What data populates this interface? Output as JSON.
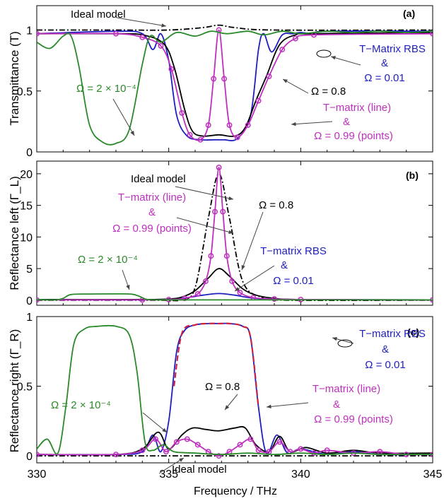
{
  "figure": {
    "xlabel": "Frequency / THz",
    "x_ticks": [
      "330",
      "335",
      "340",
      "345"
    ]
  },
  "chart_data": [
    {
      "type": "line",
      "panel_label": "(a)",
      "ylabel": "Transmittance (T)",
      "xlim": [
        330,
        345
      ],
      "ylim": [
        0,
        1.2
      ],
      "y_ticks": [
        "0",
        "0.5",
        "1"
      ],
      "grid": false,
      "series": [
        {
          "name": "Ideal model",
          "color": "#000000",
          "style": "dashdot",
          "x": [
            330,
            333,
            335,
            336.3,
            336.9,
            337.5,
            339,
            345
          ],
          "y": [
            1.0,
            1.0,
            1.0,
            1.02,
            1.04,
            1.02,
            1.0,
            1.0
          ]
        },
        {
          "name": "T-Matrix RBS & Ω = 0.01",
          "color": "#1f1fbf",
          "style": "solid",
          "x": [
            330,
            333,
            334,
            334.4,
            334.7,
            335,
            335.3,
            335.7,
            336.2,
            336.7,
            336.9,
            337.1,
            337.6,
            338.1,
            338.4,
            338.6,
            338.9,
            339.3,
            339.7,
            340,
            340.5,
            341,
            345
          ],
          "y": [
            0.97,
            0.99,
            0.97,
            0.84,
            0.97,
            0.75,
            0.3,
            0.13,
            0.1,
            0.1,
            0.1,
            0.1,
            0.11,
            0.3,
            0.84,
            0.97,
            0.82,
            0.96,
            0.97,
            0.98,
            0.97,
            0.99,
            0.99
          ]
        },
        {
          "name": "Ω = 0.8",
          "color": "#000000",
          "style": "solid",
          "x": [
            330,
            333,
            334,
            334.8,
            335.2,
            335.6,
            335.9,
            336.3,
            336.9,
            337.5,
            337.9,
            338.3,
            338.7,
            339.2,
            339.8,
            340.5,
            345
          ],
          "y": [
            0.97,
            0.97,
            0.96,
            0.89,
            0.7,
            0.35,
            0.17,
            0.13,
            0.14,
            0.13,
            0.2,
            0.42,
            0.62,
            0.88,
            0.96,
            0.97,
            0.98
          ]
        },
        {
          "name": "T-matrix (line) & Ω = 0.99 (points)",
          "color": "#bf2fbf",
          "style": "solid-markers",
          "x": [
            330,
            333,
            334,
            334.7,
            335.1,
            335.5,
            335.8,
            336.2,
            336.5,
            336.7,
            336.9,
            337.1,
            337.3,
            337.6,
            338,
            338.4,
            338.8,
            339.3,
            339.8,
            340.5,
            345
          ],
          "y": [
            0.97,
            0.97,
            0.94,
            0.87,
            0.68,
            0.32,
            0.14,
            0.1,
            0.22,
            0.6,
            1.0,
            0.6,
            0.22,
            0.12,
            0.22,
            0.42,
            0.62,
            0.84,
            0.93,
            0.96,
            0.97
          ]
        },
        {
          "name": "Ω = 2 × 10⁻⁴",
          "color": "#2a8a2a",
          "style": "solid",
          "x": [
            330,
            330.5,
            331,
            331.3,
            331.6,
            332,
            332.5,
            333,
            333.5,
            334,
            334.3,
            334.7,
            335.3,
            336,
            336.6,
            337.2,
            338,
            338.6,
            339.3,
            340,
            341,
            342,
            343,
            344,
            345
          ],
          "y": [
            0.9,
            0.85,
            0.95,
            0.95,
            0.7,
            0.22,
            0.08,
            0.07,
            0.18,
            0.72,
            0.95,
            0.9,
            0.98,
            0.95,
            0.99,
            0.97,
            0.99,
            0.96,
            0.99,
            0.97,
            0.99,
            0.98,
            0.99,
            0.98,
            0.99
          ]
        }
      ],
      "annotations": [
        {
          "text": "Ideal model",
          "color": "#000000"
        },
        {
          "text": "T−Matrix RBS",
          "color": "#1f1fbf"
        },
        {
          "text": "&",
          "color": "#1f1fbf"
        },
        {
          "text": "Ω = 0.01",
          "color": "#1f1fbf"
        },
        {
          "text": "Ω = 0.8",
          "color": "#000000"
        },
        {
          "text": "T−matrix (line)",
          "color": "#bf2fbf"
        },
        {
          "text": "&",
          "color": "#bf2fbf"
        },
        {
          "text": "Ω = 0.99 (points)",
          "color": "#bf2fbf"
        },
        {
          "text": "Ω = 2 × 10⁻⁴",
          "color": "#2a8a2a"
        }
      ]
    },
    {
      "type": "line",
      "panel_label": "(b)",
      "ylabel": "Reflectance left (Γ_L)",
      "xlim": [
        330,
        345
      ],
      "ylim": [
        -0.8,
        22
      ],
      "y_ticks": [
        "0",
        "5",
        "10",
        "15",
        "20"
      ],
      "grid": false,
      "series": [
        {
          "name": "Ideal model",
          "color": "#000000",
          "style": "dashdot",
          "x": [
            330,
            334.5,
            335.5,
            336,
            336.5,
            336.9,
            337.3,
            337.8,
            338.5,
            339.5,
            345
          ],
          "y": [
            0,
            0,
            0.1,
            2.0,
            13.0,
            20.0,
            13.0,
            3.0,
            0.5,
            0,
            0
          ]
        },
        {
          "name": "T-matrix RBS & Ω = 0.01",
          "color": "#1f1fbf",
          "style": "solid",
          "x": [
            330,
            333,
            334.5,
            335.5,
            336.3,
            336.9,
            337.5,
            338.3,
            340,
            345
          ],
          "y": [
            0.1,
            0.05,
            0.1,
            0.3,
            0.8,
            1.05,
            0.8,
            0.3,
            0.1,
            0.05
          ]
        },
        {
          "name": "Ω = 0.8",
          "color": "#000000",
          "style": "solid",
          "x": [
            330,
            334,
            335,
            335.5,
            336,
            336.5,
            336.9,
            337.3,
            337.8,
            338.3,
            339,
            340,
            345
          ],
          "y": [
            0.1,
            0.1,
            0.2,
            0.5,
            1.5,
            3.5,
            5.0,
            3.8,
            1.8,
            0.8,
            0.3,
            0.1,
            0.05
          ]
        },
        {
          "name": "T-matrix (line) & Ω = 0.99 (points)",
          "color": "#bf2fbf",
          "style": "solid-markers",
          "x": [
            330,
            334,
            335,
            335.6,
            336.1,
            336.4,
            336.6,
            336.75,
            336.9,
            337.05,
            337.2,
            337.4,
            337.7,
            338.2,
            339,
            340,
            345
          ],
          "y": [
            0.05,
            0.05,
            0.1,
            0.3,
            1.0,
            3.0,
            7.0,
            14.0,
            21.0,
            14.0,
            7.0,
            3.0,
            1.2,
            0.4,
            0.2,
            0.1,
            0.05
          ]
        },
        {
          "name": "Ω = 2 × 10⁻⁴",
          "color": "#2a8a2a",
          "style": "solid",
          "x": [
            330,
            330.7,
            331,
            331.3,
            332,
            333,
            333.6,
            333.9,
            334.2,
            335,
            336,
            345
          ],
          "y": [
            0.1,
            0.05,
            0.3,
            0.9,
            0.98,
            1.0,
            0.95,
            0.6,
            0.1,
            0.05,
            0.05,
            0.05
          ]
        }
      ],
      "annotations": [
        {
          "text": "Ideal model",
          "color": "#000000"
        },
        {
          "text": "Ω = 0.8",
          "color": "#000000"
        },
        {
          "text": "T−matrix (line)",
          "color": "#bf2fbf"
        },
        {
          "text": "&",
          "color": "#bf2fbf"
        },
        {
          "text": "Ω = 0.99 (points)",
          "color": "#bf2fbf"
        },
        {
          "text": "T−matrix RBS",
          "color": "#1f1fbf"
        },
        {
          "text": "&",
          "color": "#1f1fbf"
        },
        {
          "text": "Ω = 0.01",
          "color": "#1f1fbf"
        },
        {
          "text": "Ω = 2 × 10⁻⁴",
          "color": "#2a8a2a"
        }
      ]
    },
    {
      "type": "line",
      "panel_label": "(c)",
      "ylabel": "Reflectance right (Γ_R)",
      "xlim": [
        330,
        345
      ],
      "ylim": [
        -0.05,
        1.0
      ],
      "y_ticks": [
        "0",
        "0.5",
        "1"
      ],
      "grid": false,
      "series": [
        {
          "name": "Ideal model",
          "color": "#000000",
          "style": "dashdot",
          "x": [
            330,
            345
          ],
          "y": [
            0.0,
            0.0
          ]
        },
        {
          "name": "T-matrix RBS & Ω = 0.01",
          "color": "#1f1fbf",
          "style": "solid",
          "x": [
            330,
            333,
            334,
            334.4,
            334.7,
            335,
            335.3,
            335.6,
            336,
            336.5,
            336.9,
            337.3,
            337.8,
            338.1,
            338.4,
            338.7,
            339.1,
            339.5,
            340,
            341,
            342,
            343,
            345
          ],
          "y": [
            0.01,
            0.01,
            0.03,
            0.15,
            0.03,
            0.25,
            0.75,
            0.9,
            0.94,
            0.95,
            0.95,
            0.95,
            0.93,
            0.85,
            0.35,
            0.02,
            0.15,
            0.02,
            0.05,
            0.01,
            0.03,
            0.01,
            0.01
          ]
        },
        {
          "name": "T-matrix ideal (red dashed)",
          "color": "#cc2244",
          "style": "dashed",
          "x": [
            335.2,
            335.5,
            336,
            336.5,
            336.9,
            337.3,
            337.8,
            338.1,
            338.4
          ],
          "y": [
            0.5,
            0.88,
            0.94,
            0.95,
            0.95,
            0.95,
            0.93,
            0.85,
            0.35
          ]
        },
        {
          "name": "Ω = 0.8",
          "color": "#000000",
          "style": "solid",
          "x": [
            330,
            333,
            334,
            334.6,
            335,
            335.5,
            335.9,
            336.4,
            336.9,
            337.5,
            337.9,
            338.3,
            338.8,
            339.2,
            339.6,
            340.2,
            341,
            342,
            343,
            345
          ],
          "y": [
            0.01,
            0.01,
            0.05,
            0.17,
            0.05,
            0.15,
            0.2,
            0.19,
            0.18,
            0.2,
            0.2,
            0.08,
            0.03,
            0.14,
            0.03,
            0.06,
            0.02,
            0.04,
            0.02,
            0.02
          ]
        },
        {
          "name": "T-matrix (line) & Ω = 0.99 (points)",
          "color": "#bf2fbf",
          "style": "solid-markers",
          "x": [
            330,
            333,
            334,
            334.5,
            334.9,
            335.3,
            335.7,
            336.1,
            336.5,
            336.9,
            337.3,
            337.7,
            338.1,
            338.4,
            338.8,
            339.2,
            339.6,
            340,
            340.5,
            341,
            342,
            343,
            344,
            345
          ],
          "y": [
            0.01,
            0.01,
            0.04,
            0.12,
            0.03,
            0.1,
            0.12,
            0.08,
            0.03,
            0.0,
            0.03,
            0.08,
            0.12,
            0.04,
            0.03,
            0.1,
            0.03,
            0.05,
            0.02,
            0.04,
            0.02,
            0.03,
            0.01,
            0.01
          ]
        },
        {
          "name": "Ω = 2 × 10⁻⁴",
          "color": "#2a8a2a",
          "style": "solid",
          "x": [
            330,
            330.4,
            330.8,
            331.1,
            331.4,
            331.8,
            332.3,
            333,
            333.5,
            333.8,
            334.1,
            334.4,
            334.8,
            335.2,
            336,
            337,
            338,
            339,
            340,
            341,
            342,
            343,
            344,
            345
          ],
          "y": [
            0.05,
            0.12,
            0.02,
            0.35,
            0.8,
            0.91,
            0.93,
            0.93,
            0.87,
            0.6,
            0.1,
            0.04,
            0.08,
            0.03,
            0.02,
            0.01,
            0.02,
            0.01,
            0.02,
            0.01,
            0.02,
            0.01,
            0.01,
            0.01
          ]
        }
      ],
      "annotations": [
        {
          "text": "T−matrix RBS",
          "color": "#1f1fbf"
        },
        {
          "text": "&",
          "color": "#1f1fbf"
        },
        {
          "text": "Ω = 0.01",
          "color": "#1f1fbf"
        },
        {
          "text": "Ω = 0.8",
          "color": "#000000"
        },
        {
          "text": "T−matrix (line)",
          "color": "#bf2fbf"
        },
        {
          "text": "&",
          "color": "#bf2fbf"
        },
        {
          "text": "Ω = 0.99 (points)",
          "color": "#bf2fbf"
        },
        {
          "text": "Ω = 2 × 10⁻⁴",
          "color": "#2a8a2a"
        },
        {
          "text": "Ideal model",
          "color": "#000000"
        }
      ]
    }
  ]
}
